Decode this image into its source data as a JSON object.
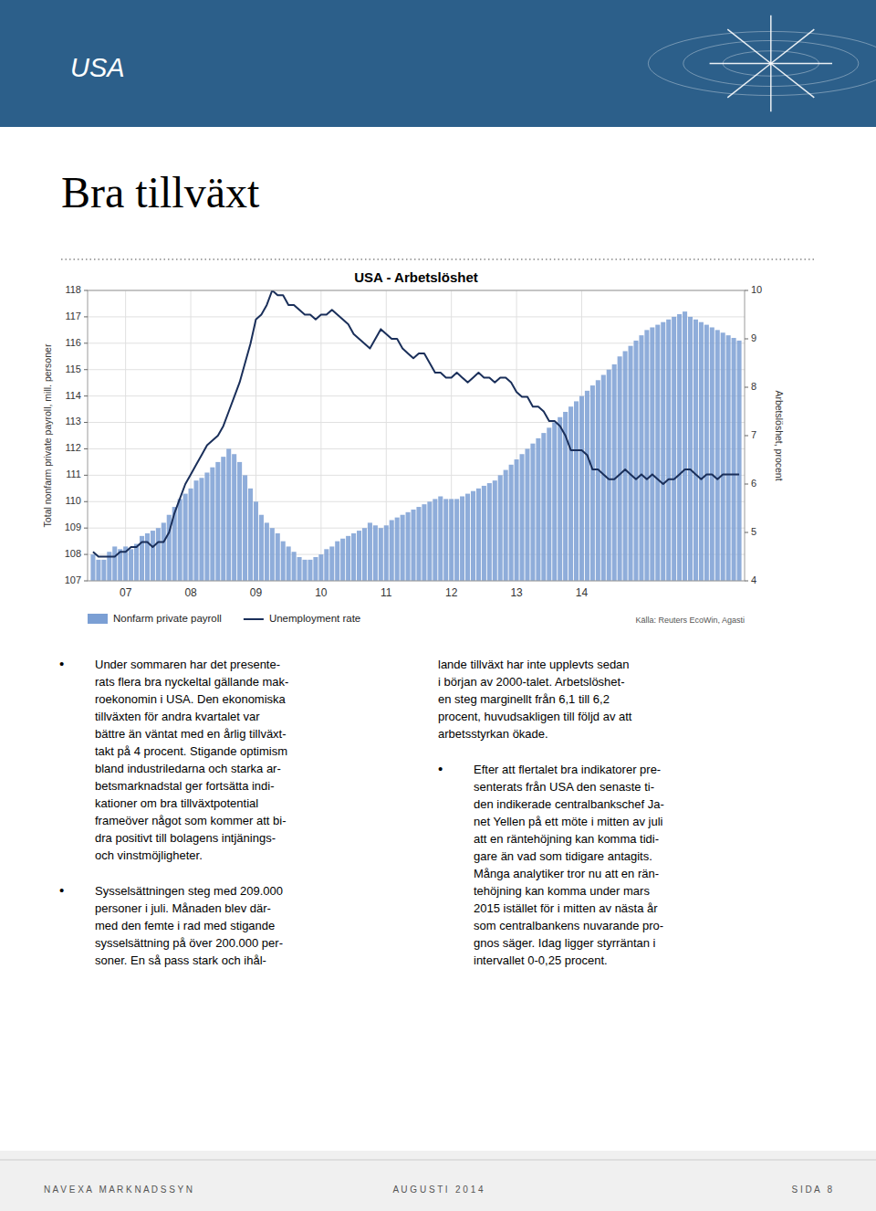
{
  "chart_data": {
    "type": "bar",
    "title": "USA - Arbetslöshet",
    "ylabel": "Total nonfarm private payroll, mill. personer",
    "y2label": "Arbetslöshet, procent",
    "categories": [
      null,
      null,
      null,
      null,
      null,
      null,
      "07",
      null,
      null,
      null,
      null,
      null,
      null,
      null,
      null,
      null,
      null,
      null,
      "08",
      null,
      null,
      null,
      null,
      null,
      null,
      null,
      null,
      null,
      null,
      null,
      "09",
      null,
      null,
      null,
      null,
      null,
      null,
      null,
      null,
      null,
      null,
      null,
      "10",
      null,
      null,
      null,
      null,
      null,
      null,
      null,
      null,
      null,
      null,
      null,
      "11",
      null,
      null,
      null,
      null,
      null,
      null,
      null,
      null,
      null,
      null,
      null,
      "12",
      null,
      null,
      null,
      null,
      null,
      null,
      null,
      null,
      null,
      null,
      null,
      "13",
      null,
      null,
      null,
      null,
      null,
      null,
      null,
      null,
      null,
      null,
      null,
      "14",
      null,
      null,
      null,
      null,
      null,
      null,
      null,
      null,
      null,
      null,
      null,
      null,
      null,
      null,
      null,
      null,
      null,
      null,
      null,
      null,
      null,
      null,
      null,
      null,
      null,
      null,
      null,
      null,
      null
    ],
    "ylim": [
      107,
      118
    ],
    "yticks": [
      107,
      108,
      109,
      110,
      111,
      112,
      113,
      114,
      115,
      116,
      117,
      118
    ],
    "y2lim": [
      4,
      10
    ],
    "y2ticks": [
      4,
      5,
      6,
      7,
      8,
      9,
      10
    ],
    "grid": true,
    "legend": "bottom",
    "annotations": [
      "Källa: Reuters EcoWin, Agasti"
    ],
    "series": [
      {
        "name": "Nonfarm private payroll",
        "type": "bar",
        "color": "#7b9fd4",
        "values": [
          108.0,
          107.8,
          107.8,
          108.1,
          108.3,
          108.2,
          108.3,
          108.2,
          108.4,
          108.7,
          108.8,
          108.9,
          109.0,
          109.2,
          109.5,
          109.8,
          110.1,
          110.3,
          110.5,
          110.8,
          110.9,
          111.1,
          111.3,
          111.5,
          111.7,
          112.0,
          111.8,
          111.5,
          111.0,
          110.5,
          110.0,
          109.5,
          109.2,
          109.0,
          108.8,
          108.5,
          108.3,
          108.1,
          107.9,
          107.8,
          107.8,
          107.9,
          108.0,
          108.2,
          108.3,
          108.5,
          108.6,
          108.7,
          108.8,
          108.9,
          109.0,
          109.2,
          109.1,
          109.0,
          109.1,
          109.3,
          109.4,
          109.5,
          109.6,
          109.7,
          109.8,
          109.9,
          110.0,
          110.1,
          110.2,
          110.1,
          110.1,
          110.1,
          110.2,
          110.3,
          110.4,
          110.5,
          110.6,
          110.7,
          110.8,
          111.0,
          111.2,
          111.4,
          111.6,
          111.8,
          112.0,
          112.2,
          112.4,
          112.6,
          112.8,
          113.0,
          113.2,
          113.4,
          113.6,
          113.8,
          114.0,
          114.2,
          114.4,
          114.6,
          114.8,
          115.0,
          115.2,
          115.5,
          115.7,
          115.9,
          116.1,
          116.3,
          116.5,
          116.6,
          116.7,
          116.8,
          116.9,
          117.0,
          117.1,
          117.2,
          117.0,
          116.9,
          116.8,
          116.7,
          116.6,
          116.5,
          116.4,
          116.3,
          116.2,
          116.1
        ]
      },
      {
        "name": "Unemployment rate",
        "type": "line",
        "axis": "y2",
        "color": "#1a2f5a",
        "values": [
          4.6,
          4.5,
          4.5,
          4.5,
          4.5,
          4.6,
          4.6,
          4.7,
          4.7,
          4.8,
          4.8,
          4.7,
          4.8,
          4.8,
          5.0,
          5.4,
          5.7,
          6.0,
          6.2,
          6.4,
          6.6,
          6.8,
          6.9,
          7.0,
          7.2,
          7.5,
          7.8,
          8.1,
          8.5,
          8.9,
          9.4,
          9.5,
          9.7,
          10.0,
          9.9,
          9.9,
          9.7,
          9.7,
          9.6,
          9.5,
          9.5,
          9.4,
          9.5,
          9.5,
          9.6,
          9.5,
          9.4,
          9.3,
          9.1,
          9.0,
          8.9,
          8.8,
          9.0,
          9.2,
          9.1,
          9.0,
          9.0,
          8.8,
          8.7,
          8.6,
          8.7,
          8.7,
          8.5,
          8.3,
          8.3,
          8.2,
          8.2,
          8.3,
          8.2,
          8.1,
          8.2,
          8.3,
          8.2,
          8.2,
          8.1,
          8.2,
          8.2,
          8.1,
          7.9,
          7.8,
          7.8,
          7.6,
          7.6,
          7.5,
          7.3,
          7.3,
          7.2,
          7.0,
          6.7,
          6.7,
          6.7,
          6.6,
          6.3,
          6.3,
          6.2,
          6.1,
          6.1,
          6.2,
          6.3,
          6.2,
          6.1,
          6.2,
          6.1,
          6.2,
          6.1,
          6.0,
          6.1,
          6.1,
          6.2,
          6.3,
          6.3,
          6.2,
          6.1,
          6.2,
          6.2,
          6.1,
          6.2,
          6.2,
          6.2,
          6.2
        ]
      }
    ]
  },
  "page": {
    "header_text": "USA",
    "color": "#2c5f8a",
    "page_title": "Bra tillväxt",
    "columns": [
      [
        {
          "bullet": "•",
          "text": "Under sommaren har det presente-\nrats flera bra nyckeltal gällande mak-\nroekonomin i USA. Den ekonomiska\ntillväxten för andra kvartalet var\nbättre än väntat med en årlig tillväxt-\ntakt på 4 procent. Stigande optimism\nbland industriledarna och starka ar-\nbetsmarknadstal ger fortsätta indi-\nkationer om bra tillväxtpotential\nframeöver något som kommer att bi-\ndra positivt till bolagens intjänings-\noch vinstmöjligheter."
        },
        {
          "bullet": "•",
          "text": "Sysselsättningen steg med 209.000\npersoner i juli. Månaden blev där-\nmed den femte i rad med stigande\nsysselsättning på över 200.000 per-\nsoner. En så pass stark och ihål-"
        }
      ],
      [
        {
          "text": "lande tillväxt har inte upplevts sedan\ni början av 2000-talet. Arbetslöshet-\nen steg marginellt från 6,1 till 6,2\nprocent, huvudsakligen till följd av att\narbetsstyrkan ökade."
        },
        {
          "bullet": "•",
          "text": "Efter att flertalet bra indikatorer pre-\nsenterats från USA den senaste ti-\nden indikerade centralbankschef Ja-\nnet Yellen på ett möte i mitten av juli\natt en räntehöjning kan komma tidi-\ngare än vad som tidigare antagits.\nMånga analytiker tror nu att en rän-\ntehöjning kan komma under mars\n2015 istället för i mitten av nästa år\nsom centralbankens nuvarande pro-\ngnos säger. Idag ligger styrräntan i\nintervallet 0-0,25 procent."
        }
      ]
    ],
    "footer": [
      "N A V E X A   M A R K N A D S S Y N",
      "A U G U S T I   2 0 1 4",
      "S I D A   8"
    ]
  }
}
